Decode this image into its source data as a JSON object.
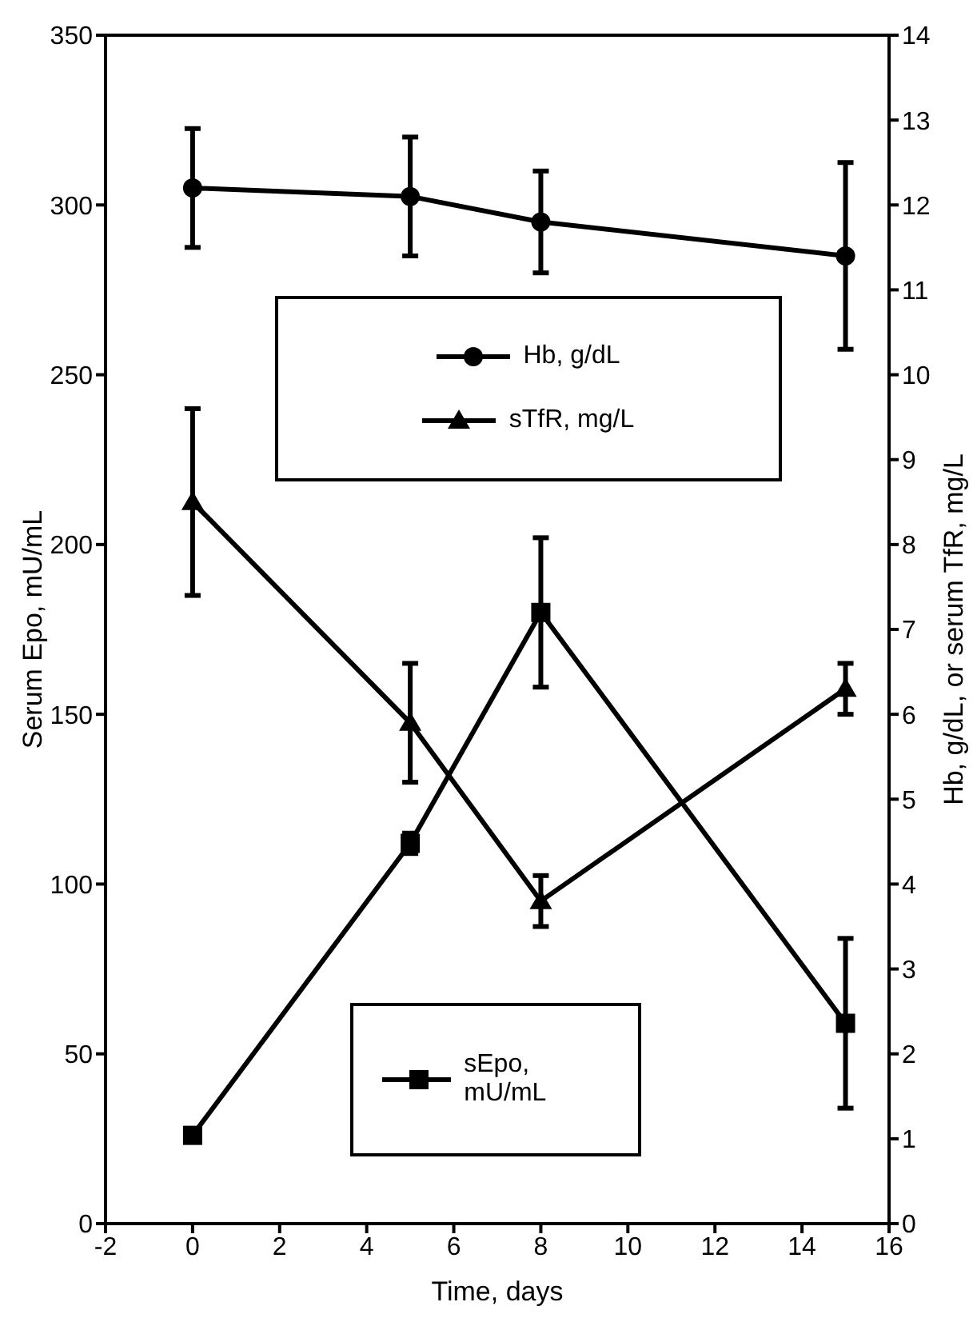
{
  "chart_data": {
    "type": "line",
    "xlabel": "Time, days",
    "ylabel": "Serum Epo, mU/mL",
    "y2label": "Hb, g/dL, or serum TfR, mg/L",
    "xlim": [
      -2,
      16
    ],
    "xticks": [
      -2,
      0,
      2,
      4,
      6,
      8,
      10,
      12,
      14,
      16
    ],
    "ylim": [
      0,
      350
    ],
    "yticks": [
      0,
      50,
      100,
      150,
      200,
      250,
      300,
      350
    ],
    "y2lim": [
      0,
      14
    ],
    "y2ticks": [
      0,
      1,
      2,
      3,
      4,
      5,
      6,
      7,
      8,
      9,
      10,
      11,
      12,
      13,
      14
    ],
    "x": [
      0,
      5,
      8,
      15
    ],
    "legend": "center",
    "series": [
      {
        "name": "Hb, g/dL",
        "color": "#000000",
        "axis": "y2",
        "marker": "circle",
        "values": [
          12.2,
          12.1,
          11.8,
          11.4
        ],
        "errors": [
          0.7,
          0.7,
          0.6,
          1.1
        ]
      },
      {
        "name": "sTfR, mg/L",
        "color": "#000000",
        "axis": "y2",
        "marker": "triangle",
        "values": [
          8.5,
          5.9,
          3.8,
          6.3
        ],
        "errors": [
          1.1,
          0.7,
          0.3,
          0.3
        ]
      },
      {
        "name": "sEpo, mU/mL",
        "color": "#000000",
        "axis": "y",
        "marker": "square",
        "values": [
          26,
          112,
          180,
          59
        ],
        "errors": [
          null,
          3,
          22,
          25
        ]
      }
    ]
  }
}
